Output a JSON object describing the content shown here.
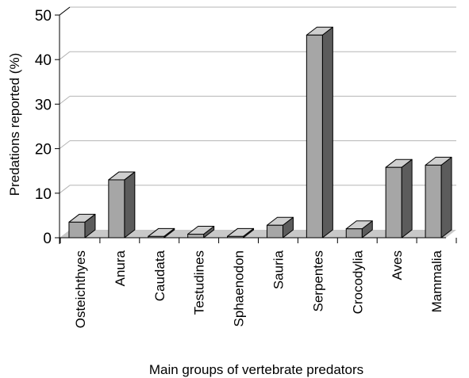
{
  "chart_data": {
    "type": "bar",
    "title": "",
    "xlabel": "Main groups of vertebrate predators",
    "ylabel": "Predations reported (%)",
    "ylim": [
      0,
      50
    ],
    "yticks": [
      "0",
      "10",
      "20",
      "30",
      "40",
      "50"
    ],
    "grid": true,
    "style": "3d",
    "categories": [
      "Osteichthyes",
      "Anura",
      "Caudata",
      "Testudines",
      "Sphaenodon",
      "Sauria",
      "Serpentes",
      "Crocodylia",
      "Aves",
      "Mammalia"
    ],
    "values": [
      3.5,
      13.0,
      0.3,
      0.8,
      0.3,
      2.8,
      45.5,
      2.0,
      15.8,
      16.3
    ]
  },
  "colors": {
    "bar_front": "#a6a6a6",
    "bar_top": "#cfcfcf",
    "bar_side": "#5c5c5c",
    "floor": "#c8c8c8",
    "grid": "#b5b5b5"
  }
}
